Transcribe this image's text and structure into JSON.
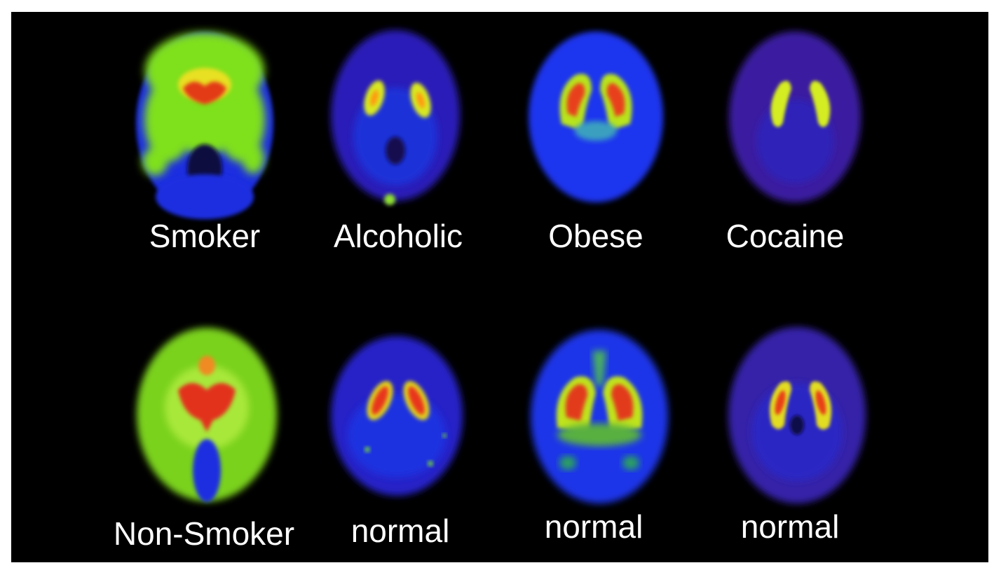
{
  "panels": [
    {
      "id": "smoker",
      "label": "Smoker",
      "palette": "green",
      "colors": {
        "bg": "#1b2fe0",
        "mid": "#7fe01c",
        "hot": "#e23a12"
      }
    },
    {
      "id": "alcoholic",
      "label": "Alcoholic",
      "palette": "purple-blue",
      "colors": {
        "bg": "#2a1fb8",
        "mid": "#d8e820",
        "hot": "#ff9a10"
      }
    },
    {
      "id": "obese",
      "label": "Obese",
      "palette": "blue",
      "colors": {
        "bg": "#1e34ee",
        "mid": "#b8e41a",
        "hot": "#e8401a"
      }
    },
    {
      "id": "cocaine",
      "label": "Cocaine",
      "palette": "purple",
      "colors": {
        "bg": "#3a1fa0",
        "mid": "#d4ec22",
        "hot": "#f0d020"
      }
    },
    {
      "id": "non-smoker",
      "label": "Non-Smoker",
      "palette": "green",
      "colors": {
        "bg": "#7ad21e",
        "mid": "#a8e83a",
        "hot": "#e2301a"
      }
    },
    {
      "id": "normal-1",
      "label": "normal",
      "palette": "purple-blue",
      "colors": {
        "bg": "#2620c8",
        "mid": "#e0d41c",
        "hot": "#e8361a"
      }
    },
    {
      "id": "normal-2",
      "label": "normal",
      "palette": "blue",
      "colors": {
        "bg": "#1e36e8",
        "mid": "#c0e41c",
        "hot": "#e23a1a"
      }
    },
    {
      "id": "normal-3",
      "label": "normal",
      "palette": "purple",
      "colors": {
        "bg": "#3420a8",
        "mid": "#e2dc20",
        "hot": "#e84018"
      }
    }
  ]
}
